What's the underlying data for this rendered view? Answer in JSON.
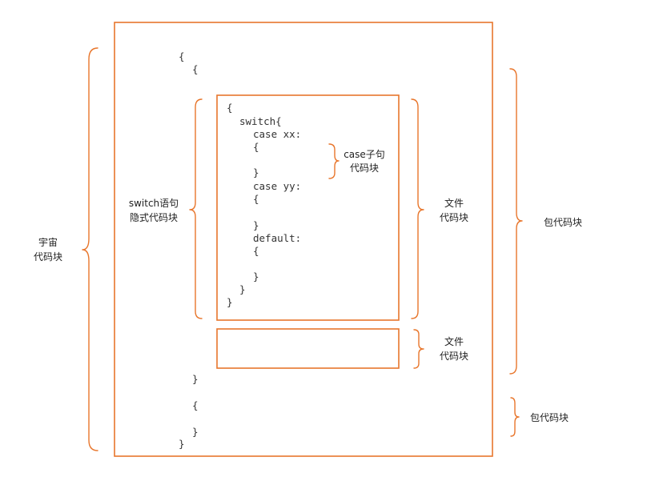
{
  "colors": {
    "accent": "#E8762C",
    "code_text": "#333333",
    "label_text": "#222222"
  },
  "code": {
    "outer_open_1": "{",
    "outer_open_2": "{",
    "block_open": "{",
    "switch": "switch{",
    "case_xx": "case xx:",
    "case_xx_open": "{",
    "case_xx_close": "}",
    "case_yy": "case yy:",
    "case_yy_open": "{",
    "case_yy_close": "}",
    "default": "default:",
    "default_open": "{",
    "default_close": "}",
    "switch_close": "}",
    "block_close": "}",
    "inner_close": "}",
    "second_open": "{",
    "second_close": "}",
    "outer_close": "}"
  },
  "labels": {
    "universe": [
      "宇宙",
      "代码块"
    ],
    "switch_implicit": [
      "switch语句",
      "隐式代码块"
    ],
    "case_clause": [
      "case子句",
      "代码块"
    ],
    "file_1": [
      "文件",
      "代码块"
    ],
    "file_2": [
      "文件",
      "代码块"
    ],
    "package_1": "包代码块",
    "package_2": "包代码块"
  }
}
